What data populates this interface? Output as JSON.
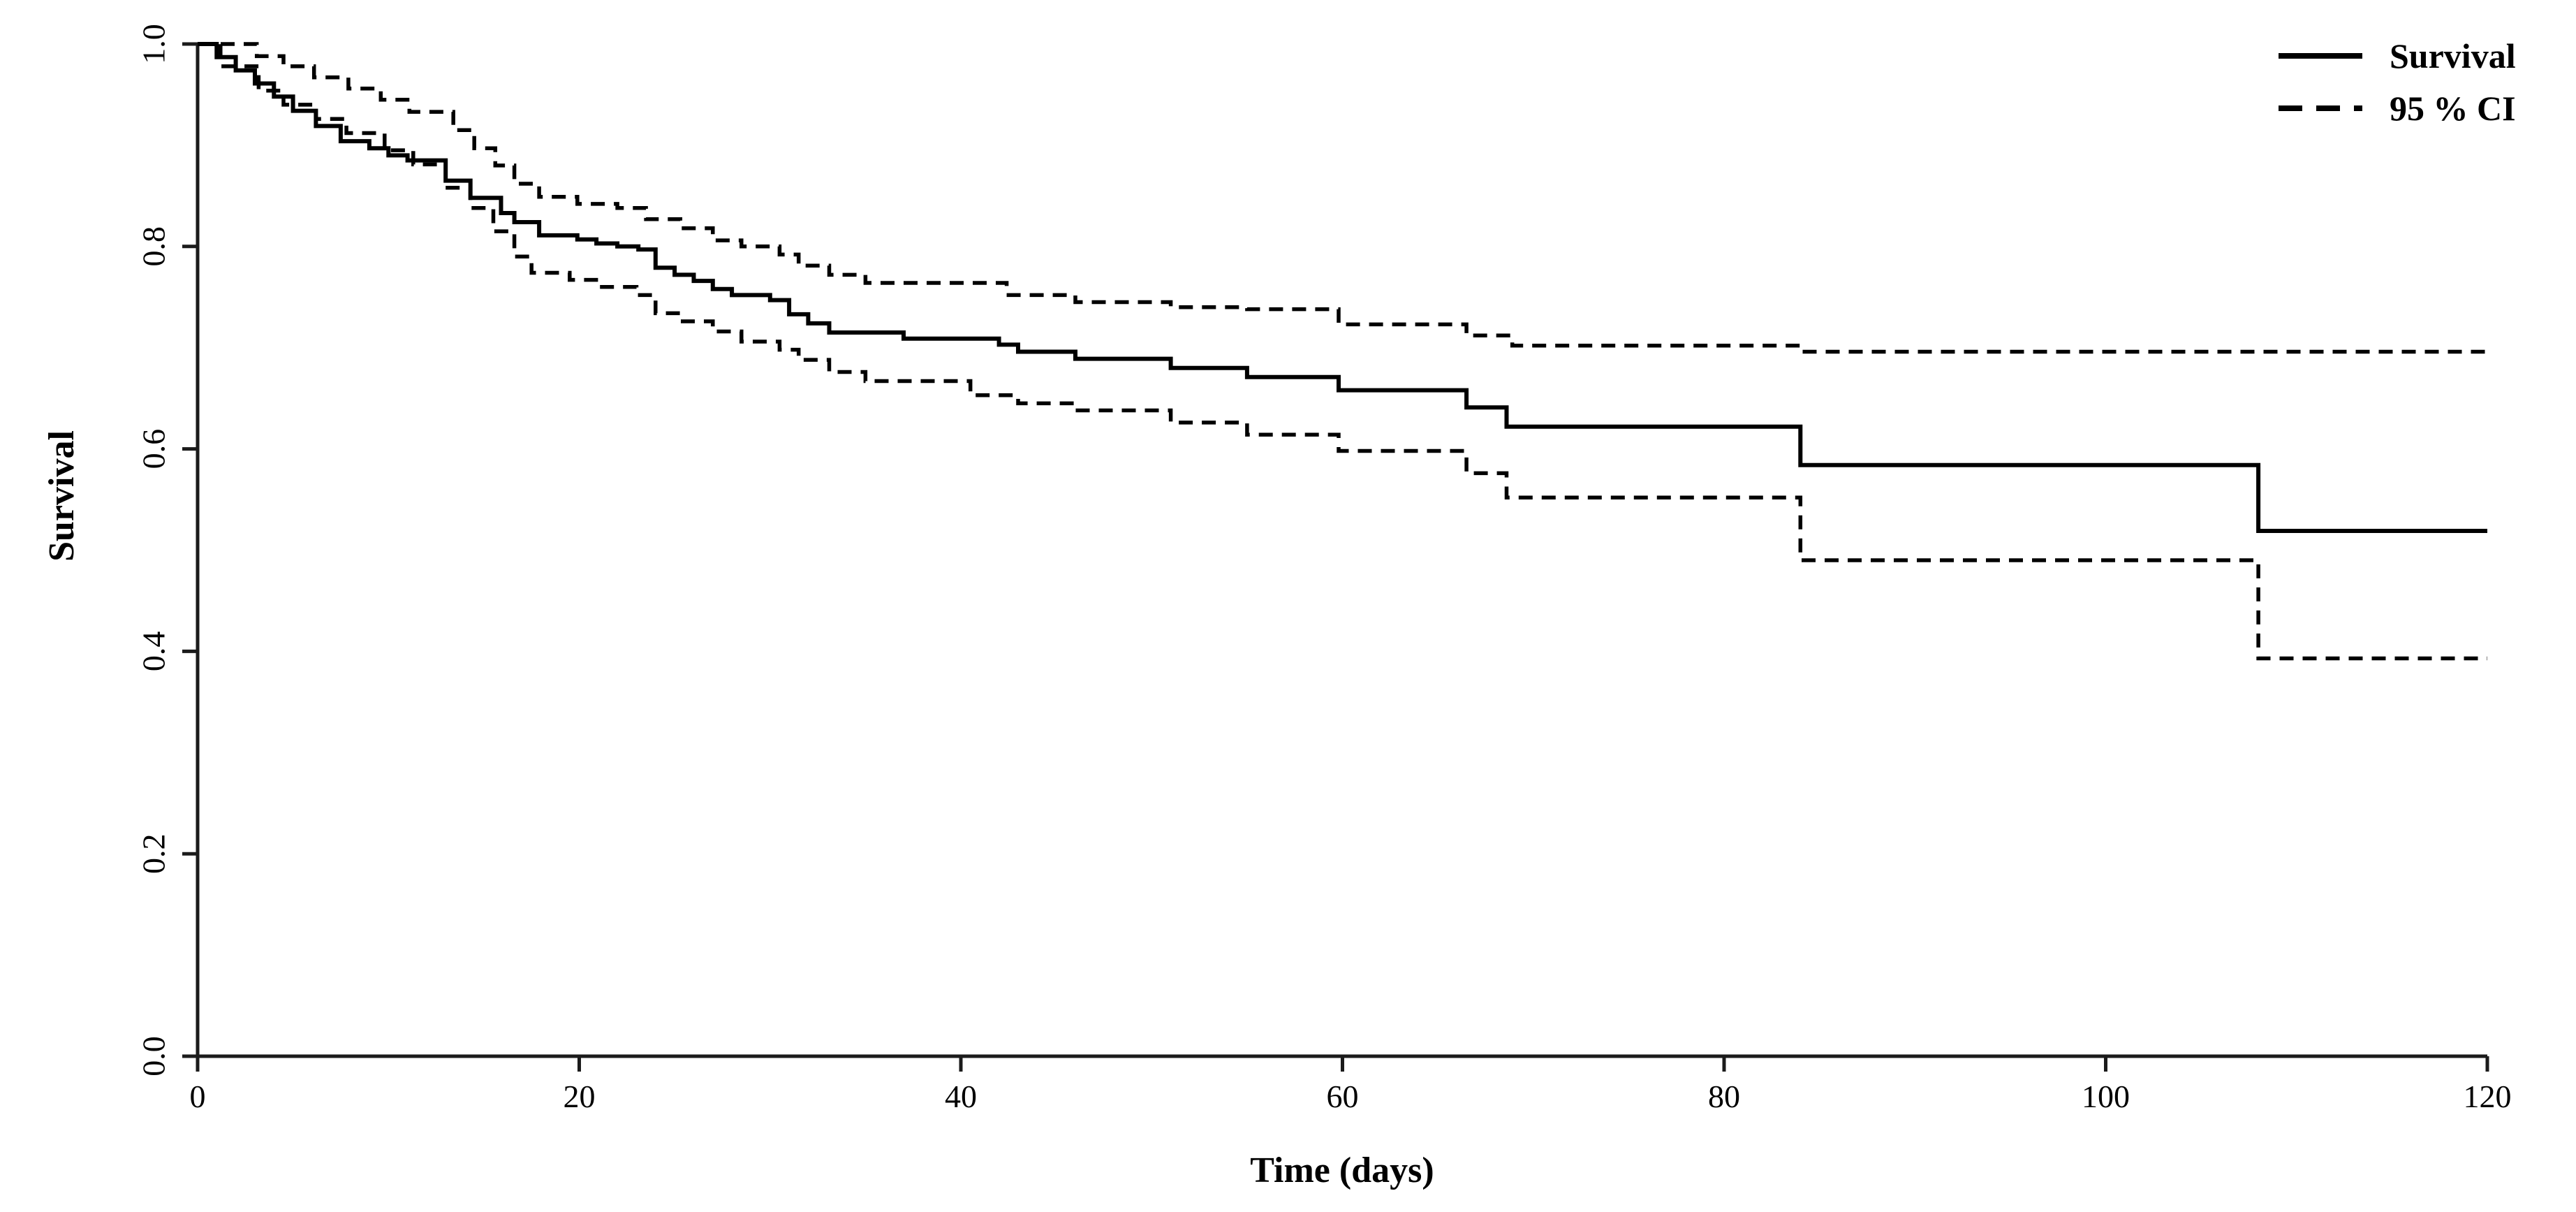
{
  "figure": {
    "background_color": "#ffffff",
    "ink_color": "#000000"
  },
  "axes": {
    "x": {
      "title": "Time (days)",
      "tick_labels": [
        "0",
        "20",
        "40",
        "60",
        "80",
        "100",
        "120"
      ]
    },
    "y": {
      "title": "Survival",
      "tick_labels": [
        "0.0",
        "0.2",
        "0.4",
        "0.6",
        "0.8",
        "1.0"
      ]
    }
  },
  "legend": {
    "items": [
      {
        "label": "Survival",
        "style": "solid"
      },
      {
        "label": "95 % CI",
        "style": "dashed"
      }
    ]
  },
  "chart_data": {
    "type": "line",
    "subtype": "kaplan-meier-step",
    "title": "",
    "xlabel": "Time (days)",
    "ylabel": "Survival",
    "xlim": [
      0,
      120
    ],
    "ylim": [
      0.0,
      1.0
    ],
    "x_ticks": [
      0,
      20,
      40,
      60,
      80,
      100,
      120
    ],
    "y_ticks": [
      0.0,
      0.2,
      0.4,
      0.6,
      0.8,
      1.0
    ],
    "grid": false,
    "legend_position": "top-right",
    "x_end": 120,
    "series": [
      {
        "id": "survival",
        "name": "Survival",
        "style": "solid",
        "steps": [
          [
            0,
            1.0
          ],
          [
            1,
            0.987
          ],
          [
            2,
            0.974
          ],
          [
            3,
            0.961
          ],
          [
            4,
            0.948
          ],
          [
            5,
            0.934
          ],
          [
            6.2,
            0.919
          ],
          [
            7.5,
            0.904
          ],
          [
            9,
            0.897
          ],
          [
            10,
            0.89
          ],
          [
            11,
            0.885
          ],
          [
            13,
            0.865
          ],
          [
            14.3,
            0.848
          ],
          [
            15.9,
            0.833
          ],
          [
            16.6,
            0.824
          ],
          [
            17.9,
            0.811
          ],
          [
            19.9,
            0.807
          ],
          [
            20.9,
            0.803
          ],
          [
            22,
            0.8
          ],
          [
            23.1,
            0.797
          ],
          [
            24,
            0.779
          ],
          [
            25,
            0.772
          ],
          [
            26,
            0.766
          ],
          [
            27,
            0.758
          ],
          [
            28,
            0.752
          ],
          [
            30,
            0.747
          ],
          [
            31,
            0.733
          ],
          [
            32,
            0.724
          ],
          [
            33.1,
            0.715
          ],
          [
            37,
            0.709
          ],
          [
            42,
            0.703
          ],
          [
            43,
            0.696
          ],
          [
            46,
            0.689
          ],
          [
            51,
            0.68
          ],
          [
            55,
            0.671
          ],
          [
            59.8,
            0.658
          ],
          [
            66.5,
            0.641
          ],
          [
            68.6,
            0.622
          ],
          [
            84,
            0.584
          ],
          [
            108,
            0.519
          ]
        ]
      },
      {
        "id": "ci-upper",
        "name": "95 % CI upper",
        "style": "dashed",
        "steps": [
          [
            0,
            1.0
          ],
          [
            3.1,
            0.988
          ],
          [
            4.5,
            0.978
          ],
          [
            6.1,
            0.967
          ],
          [
            7.9,
            0.956
          ],
          [
            9.6,
            0.945
          ],
          [
            11.1,
            0.933
          ],
          [
            13.4,
            0.915
          ],
          [
            14.5,
            0.897
          ],
          [
            15.6,
            0.88
          ],
          [
            16.6,
            0.862
          ],
          [
            17.9,
            0.849
          ],
          [
            19.9,
            0.842
          ],
          [
            22,
            0.838
          ],
          [
            23.5,
            0.827
          ],
          [
            25.3,
            0.818
          ],
          [
            27,
            0.806
          ],
          [
            28.5,
            0.8
          ],
          [
            30.5,
            0.792
          ],
          [
            31.5,
            0.781
          ],
          [
            33.1,
            0.772
          ],
          [
            35,
            0.764
          ],
          [
            42.4,
            0.752
          ],
          [
            46,
            0.745
          ],
          [
            51,
            0.74
          ],
          [
            55,
            0.738
          ],
          [
            59.8,
            0.723
          ],
          [
            66.5,
            0.712
          ],
          [
            68.9,
            0.702
          ],
          [
            84,
            0.696
          ]
        ]
      },
      {
        "id": "ci-lower",
        "name": "95 % CI lower",
        "style": "dashed",
        "steps": [
          [
            0,
            1.0
          ],
          [
            1.2,
            0.978
          ],
          [
            3.2,
            0.954
          ],
          [
            4.5,
            0.94
          ],
          [
            6.2,
            0.926
          ],
          [
            7.8,
            0.912
          ],
          [
            9.8,
            0.895
          ],
          [
            11.3,
            0.881
          ],
          [
            13,
            0.858
          ],
          [
            14.3,
            0.838
          ],
          [
            15.5,
            0.815
          ],
          [
            16.6,
            0.79
          ],
          [
            17.5,
            0.774
          ],
          [
            19.5,
            0.767
          ],
          [
            21,
            0.76
          ],
          [
            23,
            0.752
          ],
          [
            24,
            0.734
          ],
          [
            25.3,
            0.726
          ],
          [
            27,
            0.716
          ],
          [
            28.5,
            0.706
          ],
          [
            30.5,
            0.698
          ],
          [
            31.5,
            0.688
          ],
          [
            33.1,
            0.676
          ],
          [
            35,
            0.667
          ],
          [
            40.5,
            0.653
          ],
          [
            43,
            0.645
          ],
          [
            46,
            0.638
          ],
          [
            51,
            0.626
          ],
          [
            55,
            0.614
          ],
          [
            59.8,
            0.598
          ],
          [
            66.5,
            0.576
          ],
          [
            68.6,
            0.552
          ],
          [
            84,
            0.49
          ],
          [
            108,
            0.393
          ]
        ]
      }
    ]
  }
}
